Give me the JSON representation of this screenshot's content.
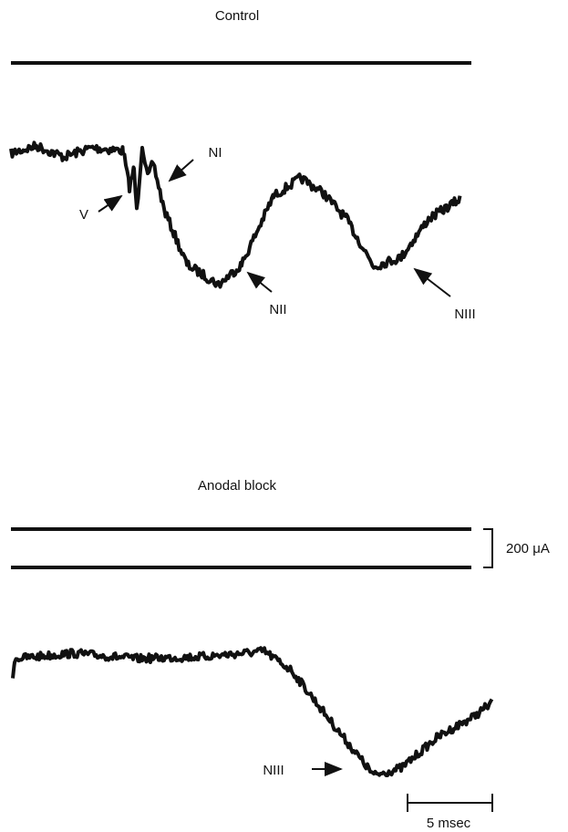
{
  "panels": [
    {
      "title": "Control",
      "labels": [
        "V",
        "NI",
        "NII",
        "NIII"
      ]
    },
    {
      "title": "Anodal block",
      "labels": [
        "NIII"
      ]
    }
  ],
  "scale_bars": {
    "current": "200 μA",
    "time": "5 msec"
  }
}
